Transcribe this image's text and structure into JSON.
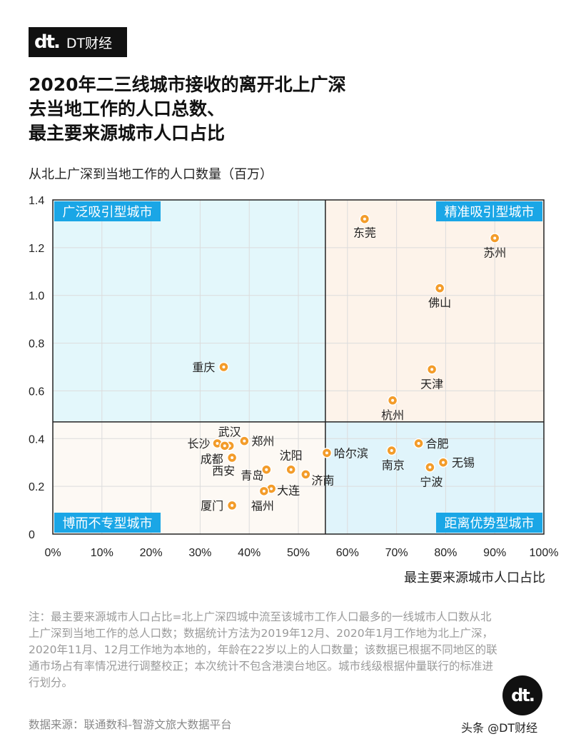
{
  "brand": {
    "logo": "dt.",
    "name": "DT财经"
  },
  "title_lines": [
    "2020年二三线城市接收的离开北上广深",
    "去当地工作的人口总数、",
    "最主要来源城市人口占比"
  ],
  "colors": {
    "quadrant_top_left": "#e3f7fb",
    "quadrant_top_right": "#fdf3ea",
    "quadrant_bottom_left": "#fdf9f4",
    "quadrant_bottom_right": "#e0f4fb",
    "label_box": "#1aa6e6",
    "point": "#f39c2a"
  },
  "chart_data": {
    "type": "scatter",
    "xlabel": "最主要来源城市人口占比",
    "ylabel": "从北上广深到当地工作的人口数量（百万）",
    "xlim": [
      0,
      100
    ],
    "ylim": [
      0,
      1.4
    ],
    "x_ticks": [
      "0%",
      "10%",
      "20%",
      "30%",
      "40%",
      "50%",
      "60%",
      "70%",
      "80%",
      "90%",
      "100%"
    ],
    "y_ticks": [
      "0",
      "0.2",
      "0.4",
      "0.6",
      "0.8",
      "1.0",
      "1.2",
      "1.4"
    ],
    "dividers": {
      "x": 55.5,
      "y": 0.47
    },
    "quadrant_labels": {
      "top_left": "广泛吸引型城市",
      "top_right": "精准吸引型城市",
      "bottom_left": "博而不专型城市",
      "bottom_right": "距离优势型城市"
    },
    "points": [
      {
        "name": "东莞",
        "x": 63.5,
        "y": 1.32
      },
      {
        "name": "苏州",
        "x": 90.0,
        "y": 1.24
      },
      {
        "name": "佛山",
        "x": 78.8,
        "y": 1.03
      },
      {
        "name": "天津",
        "x": 77.2,
        "y": 0.69
      },
      {
        "name": "杭州",
        "x": 69.2,
        "y": 0.56
      },
      {
        "name": "重庆",
        "x": 34.8,
        "y": 0.7
      },
      {
        "name": "长沙",
        "x": 33.5,
        "y": 0.38
      },
      {
        "name": "武汉",
        "x": 36.0,
        "y": 0.37
      },
      {
        "name": "成都",
        "x": 35.0,
        "y": 0.37
      },
      {
        "name": "郑州",
        "x": 39.0,
        "y": 0.39
      },
      {
        "name": "西安",
        "x": 36.5,
        "y": 0.32
      },
      {
        "name": "青岛",
        "x": 43.5,
        "y": 0.27
      },
      {
        "name": "沈阳",
        "x": 48.5,
        "y": 0.27
      },
      {
        "name": "济南",
        "x": 51.5,
        "y": 0.25
      },
      {
        "name": "哈尔滨",
        "x": 55.8,
        "y": 0.34
      },
      {
        "name": "大连",
        "x": 44.5,
        "y": 0.19
      },
      {
        "name": "福州",
        "x": 43.0,
        "y": 0.18
      },
      {
        "name": "厦门",
        "x": 36.5,
        "y": 0.12
      },
      {
        "name": "南京",
        "x": 69.0,
        "y": 0.35
      },
      {
        "name": "合肥",
        "x": 74.5,
        "y": 0.38
      },
      {
        "name": "无锡",
        "x": 79.5,
        "y": 0.3
      },
      {
        "name": "宁波",
        "x": 76.8,
        "y": 0.28
      }
    ]
  },
  "note": "注：最主要来源城市人口占比=北上广深四城中流至该城市工作人口最多的一线城市人口数从北上广深到当地工作的总人口数；数据统计方法为2019年12月、2020年1月工作地为北上广深，2020年11月、12月工作地为本地的，年龄在22岁以上的人口数量；该数据已根据不同地区的联通市场占有率情况进行调整校正；本次统计不包含港澳台地区。城市线级根据仲量联行的标准进行划分。",
  "source": "数据来源：联通数科-智游文旅大数据平台",
  "footer_mark": "头条 @DT财经"
}
